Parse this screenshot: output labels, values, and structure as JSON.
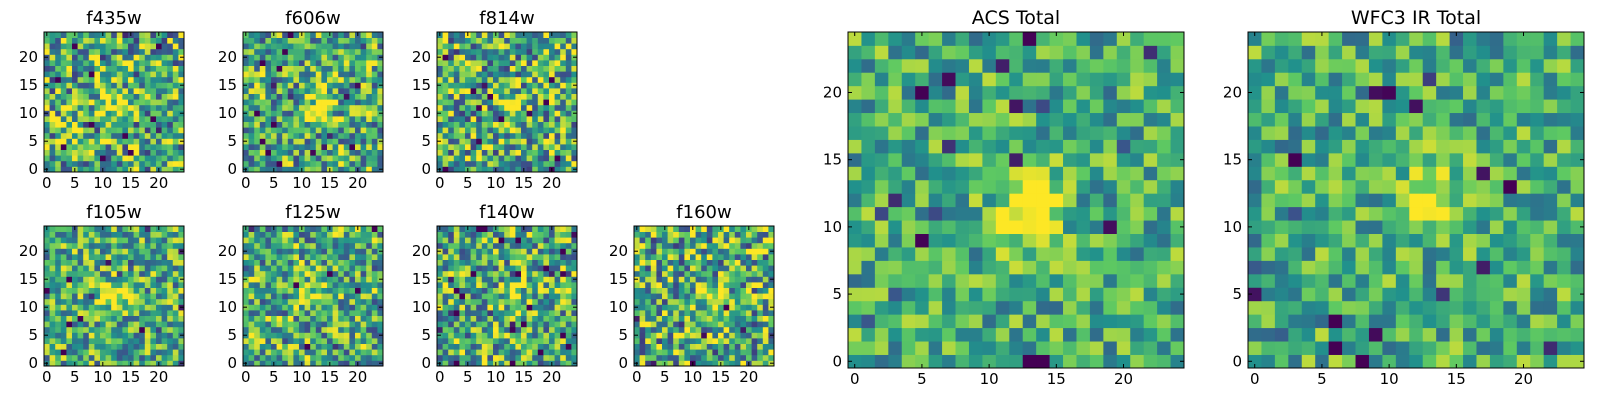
{
  "chart_data": [
    {
      "type": "heatmap",
      "title": "f435w",
      "grid": "25x25 pixels",
      "xlim": [
        0,
        24
      ],
      "ylim": [
        0,
        24
      ],
      "xticks": [
        0,
        5,
        10,
        15,
        20
      ],
      "yticks": [
        0,
        5,
        10,
        15,
        20
      ],
      "peak_at": [
        12,
        12
      ],
      "peak_strength": 0.35,
      "noise": 0.55,
      "seed": 11
    },
    {
      "type": "heatmap",
      "title": "f606w",
      "grid": "25x25 pixels",
      "xlim": [
        0,
        24
      ],
      "ylim": [
        0,
        24
      ],
      "xticks": [
        0,
        5,
        10,
        15,
        20
      ],
      "yticks": [
        0,
        5,
        10,
        15,
        20
      ],
      "peak_at": [
        13,
        11
      ],
      "peak_strength": 0.55,
      "noise": 0.5,
      "seed": 23
    },
    {
      "type": "heatmap",
      "title": "f814w",
      "grid": "25x25 pixels",
      "xlim": [
        0,
        24
      ],
      "ylim": [
        0,
        24
      ],
      "xticks": [
        0,
        5,
        10,
        15,
        20
      ],
      "yticks": [
        0,
        5,
        10,
        15,
        20
      ],
      "peak_at": [
        13,
        12
      ],
      "peak_strength": 0.3,
      "noise": 0.55,
      "seed": 37
    },
    {
      "type": "heatmap",
      "title": "f105w",
      "grid": "25x25 pixels",
      "xlim": [
        0,
        24
      ],
      "ylim": [
        0,
        24
      ],
      "xticks": [
        0,
        5,
        10,
        15,
        20
      ],
      "yticks": [
        0,
        5,
        10,
        15,
        20
      ],
      "peak_at": [
        12,
        12
      ],
      "peak_strength": 0.45,
      "noise": 0.45,
      "seed": 41
    },
    {
      "type": "heatmap",
      "title": "f125w",
      "grid": "25x25 pixels",
      "xlim": [
        0,
        24
      ],
      "ylim": [
        0,
        24
      ],
      "xticks": [
        0,
        5,
        10,
        15,
        20
      ],
      "yticks": [
        0,
        5,
        10,
        15,
        20
      ],
      "peak_at": [
        13,
        12
      ],
      "peak_strength": 0.35,
      "noise": 0.5,
      "seed": 53
    },
    {
      "type": "heatmap",
      "title": "f140w",
      "grid": "25x25 pixels",
      "xlim": [
        0,
        24
      ],
      "ylim": [
        0,
        24
      ],
      "xticks": [
        0,
        5,
        10,
        15,
        20
      ],
      "yticks": [
        0,
        5,
        10,
        15,
        20
      ],
      "peak_at": [
        13,
        12
      ],
      "peak_strength": 0.3,
      "noise": 0.5,
      "seed": 67
    },
    {
      "type": "heatmap",
      "title": "f160w",
      "grid": "25x25 pixels",
      "xlim": [
        0,
        24
      ],
      "ylim": [
        0,
        24
      ],
      "xticks": [
        0,
        5,
        10,
        15,
        20
      ],
      "yticks": [
        0,
        5,
        10,
        15,
        20
      ],
      "peak_at": [
        13,
        12
      ],
      "peak_strength": 0.3,
      "noise": 0.55,
      "seed": 79
    },
    {
      "type": "heatmap",
      "title": "ACS Total",
      "grid": "25x25 pixels",
      "xlim": [
        0,
        24
      ],
      "ylim": [
        0,
        24
      ],
      "xticks": [
        0,
        5,
        10,
        15,
        20
      ],
      "yticks": [
        0,
        5,
        10,
        15,
        20
      ],
      "peak_at": [
        13,
        11
      ],
      "peak_strength": 0.6,
      "noise": 0.35,
      "seed": 97
    },
    {
      "type": "heatmap",
      "title": "WFC3 IR Total",
      "grid": "25x25 pixels",
      "xlim": [
        0,
        24
      ],
      "ylim": [
        0,
        24
      ],
      "xticks": [
        0,
        5,
        10,
        15,
        20
      ],
      "yticks": [
        0,
        5,
        10,
        15,
        20
      ],
      "peak_at": [
        13,
        12
      ],
      "peak_strength": 0.45,
      "noise": 0.35,
      "seed": 113
    }
  ],
  "colormap": [
    "#440154",
    "#3b528b",
    "#21918c",
    "#5ec962",
    "#fde725"
  ]
}
